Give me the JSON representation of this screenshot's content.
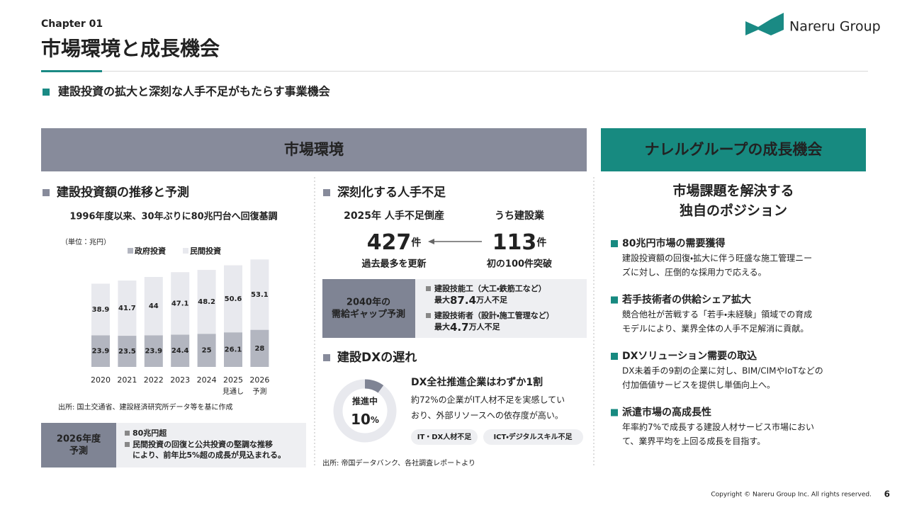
{
  "header": {
    "chapter": "Chapter 01",
    "title": "市場環境と成長機会",
    "logo": "Nareru Group"
  },
  "lead": "建設投資の拡大と深刻な人手不足がもたらす事業機会",
  "market": {
    "heading": "市場環境"
  },
  "growth": {
    "heading": "ナレルグループの成長機会",
    "subtitle": [
      "市場課題を解決する",
      "独自のポジション"
    ],
    "items": [
      {
        "title": "80兆円市場の需要獲得",
        "body": [
          "建設投資額の回復・拡大に伴う旺盛な施工管理ニー",
          "ズに対し、圧倒的な採用力で応える。"
        ]
      },
      {
        "title": "若手技術者の供給シェア拡大",
        "body": [
          "競合他社が苦戦する「若手・未経験」領域での育成",
          "モデルにより、業界全体の人手不足解消に貢献。"
        ]
      },
      {
        "title": "DXソリューション需要の取込",
        "body": [
          "DX未着手の9割の企業に対し、BIM/CIMやIoTなどの",
          "付加価値サービスを提供し単価向上へ。"
        ]
      },
      {
        "title": "派遣市場の高成長性",
        "body": [
          "年率約7%で成長する建設人材サービス市場におい",
          "て、業界平均を上回る成長を目指す。"
        ]
      }
    ]
  },
  "investment": {
    "heading": "建設投資額の推移と予測",
    "subtitle": "1996年度以来、30年ぶりに80兆円台へ回復基調",
    "unit": "（単位：兆円）",
    "source": "出所: 国土交通省、建設経済研究所データ等を基に作成"
  },
  "chart_data": {
    "type": "bar",
    "stacked": true,
    "categories": [
      "2020",
      "2021",
      "2022",
      "2023",
      "2024",
      "2025",
      "2026"
    ],
    "category_notes": [
      null,
      null,
      null,
      null,
      null,
      "見通し",
      "予測"
    ],
    "series": [
      {
        "name": "政府投資",
        "color": "#b3b6c0",
        "values": [
          23.9,
          23.5,
          23.9,
          24.4,
          25,
          26.1,
          28
        ]
      },
      {
        "name": "民間投資",
        "color": "#e8e9ee",
        "values": [
          38.9,
          41.7,
          44,
          47.1,
          48.2,
          50.6,
          53.1
        ]
      }
    ],
    "ylim": [
      0,
      85
    ]
  },
  "forecast": {
    "label": [
      "2026年度",
      "予測"
    ],
    "items": [
      [
        "80兆円超"
      ],
      [
        "民間投資の回復と公共投資の堅調な推移",
        "により、前年比5%超の成長が見込まれる。"
      ]
    ]
  },
  "labor": {
    "heading": "深刻化する人手不足",
    "left": {
      "label": "2025年 人手不足倒産",
      "number": 427,
      "unit": "件",
      "note": "過去最多を更新"
    },
    "right": {
      "label": "うち建設業",
      "number": 113,
      "unit": "件",
      "note": "初の100件突破"
    },
    "gap": {
      "label": [
        "2040年の",
        "需給ギャップ予測"
      ],
      "items": [
        {
          "title": "建設技能工（大工・鉄筋工など）",
          "prefix": "最大",
          "number": 87.4,
          "suffix": "万人不足"
        },
        {
          "title": "建設技術者（設計・施工管理など）",
          "prefix": "最大",
          "number": 4.7,
          "suffix": "万人不足"
        }
      ]
    }
  },
  "dx": {
    "heading": "建設DXの遅れ",
    "donut": {
      "label": "推進中",
      "value": 10,
      "unit": "%"
    },
    "title": "DX全社推進企業はわずか1割",
    "body": [
      "約72%の企業がIT人材不足を実感してい",
      "おり、外部リソースへの依存度が高い。"
    ],
    "tags": [
      "IT・DX人材不足",
      "ICT・デジタルスキル不足"
    ],
    "source": "出所: 帝国データバンク、各社調査レポートより"
  },
  "footer": {
    "copyright": "Copyright © Nareru Group Inc. All rights reserved.",
    "page": "6"
  }
}
